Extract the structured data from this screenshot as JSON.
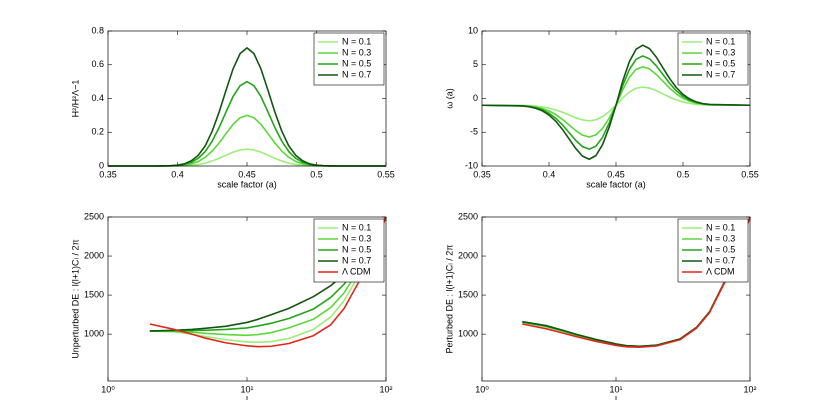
{
  "chart_data": [
    {
      "type": "line",
      "xlabel": "scale factor (a)",
      "ylabel": "H²/H²Λ−1",
      "x": [
        0.35,
        0.38,
        0.385,
        0.39,
        0.395,
        0.4,
        0.405,
        0.41,
        0.415,
        0.42,
        0.425,
        0.43,
        0.435,
        0.44,
        0.445,
        0.45,
        0.455,
        0.46,
        0.465,
        0.47,
        0.475,
        0.48,
        0.485,
        0.49,
        0.495,
        0.5,
        0.505,
        0.51,
        0.515,
        0.52,
        0.55
      ],
      "xlim": [
        0.35,
        0.55
      ],
      "xticks": [
        0.35,
        0.4,
        0.45,
        0.5,
        0.55
      ],
      "ylim": [
        0,
        0.8
      ],
      "yticks": [
        0,
        0.2,
        0.4,
        0.6,
        0.8
      ],
      "legend": "upper right",
      "series": [
        {
          "name": "N = 0.1",
          "color": "#9bee78",
          "values": [
            0,
            0,
            0,
            0,
            0,
            0.001,
            0.002,
            0.004,
            0.009,
            0.017,
            0.03,
            0.046,
            0.064,
            0.082,
            0.095,
            0.1,
            0.095,
            0.082,
            0.064,
            0.046,
            0.03,
            0.017,
            0.009,
            0.004,
            0.002,
            0.001,
            0,
            0,
            0,
            0,
            0
          ]
        },
        {
          "name": "N = 0.3",
          "color": "#5ad83a",
          "values": [
            0,
            0,
            0,
            0,
            0.001,
            0.002,
            0.006,
            0.013,
            0.027,
            0.052,
            0.089,
            0.137,
            0.193,
            0.247,
            0.286,
            0.3,
            0.286,
            0.247,
            0.193,
            0.137,
            0.089,
            0.052,
            0.027,
            0.013,
            0.006,
            0.002,
            0.001,
            0,
            0,
            0,
            0
          ]
        },
        {
          "name": "N = 0.5",
          "color": "#22a516",
          "values": [
            0,
            0,
            0,
            0,
            0.001,
            0.004,
            0.01,
            0.022,
            0.046,
            0.086,
            0.148,
            0.229,
            0.322,
            0.412,
            0.476,
            0.5,
            0.476,
            0.412,
            0.322,
            0.229,
            0.148,
            0.086,
            0.046,
            0.022,
            0.01,
            0.004,
            0.001,
            0,
            0,
            0,
            0
          ]
        },
        {
          "name": "N = 0.7",
          "color": "#125612",
          "values": [
            0,
            0,
            0,
            0.001,
            0.002,
            0.005,
            0.013,
            0.031,
            0.064,
            0.12,
            0.207,
            0.321,
            0.451,
            0.576,
            0.666,
            0.7,
            0.666,
            0.576,
            0.451,
            0.321,
            0.207,
            0.12,
            0.064,
            0.031,
            0.013,
            0.005,
            0.002,
            0.001,
            0,
            0,
            0
          ]
        }
      ]
    },
    {
      "type": "line",
      "xlabel": "scale factor (a)",
      "ylabel": "ω (a)",
      "x": [
        0.35,
        0.38,
        0.385,
        0.39,
        0.395,
        0.4,
        0.405,
        0.41,
        0.415,
        0.42,
        0.425,
        0.43,
        0.435,
        0.44,
        0.445,
        0.45,
        0.455,
        0.46,
        0.465,
        0.47,
        0.475,
        0.48,
        0.485,
        0.49,
        0.495,
        0.5,
        0.505,
        0.51,
        0.515,
        0.52,
        0.55
      ],
      "xlim": [
        0.35,
        0.55
      ],
      "xticks": [
        0.35,
        0.4,
        0.45,
        0.5,
        0.55
      ],
      "ylim": [
        -10,
        10
      ],
      "yticks": [
        -10,
        -5,
        0,
        5,
        10
      ],
      "legend": "upper right",
      "series": [
        {
          "name": "N = 0.1",
          "color": "#9bee78",
          "values": [
            -1,
            -1.03,
            -1.06,
            -1.13,
            -1.24,
            -1.42,
            -1.68,
            -2.03,
            -2.44,
            -2.85,
            -3.17,
            -3.3,
            -3.15,
            -2.67,
            -1.92,
            -1,
            0.08,
            0.97,
            1.52,
            1.7,
            1.55,
            1.17,
            0.69,
            0.2,
            -0.2,
            -0.51,
            -0.72,
            -0.85,
            -0.93,
            -0.97,
            -1
          ]
        },
        {
          "name": "N = 0.3",
          "color": "#5ad83a",
          "values": [
            -1,
            -1.06,
            -1.13,
            -1.26,
            -1.48,
            -1.85,
            -2.39,
            -3.1,
            -3.93,
            -4.77,
            -5.43,
            -5.7,
            -5.39,
            -4.42,
            -2.88,
            -1,
            1.28,
            3.15,
            4.32,
            4.7,
            4.38,
            3.58,
            2.56,
            1.54,
            0.68,
            0.03,
            -0.41,
            -0.69,
            -0.85,
            -0.93,
            -1
          ]
        },
        {
          "name": "N = 0.5",
          "color": "#22a516",
          "values": [
            -1,
            -1.09,
            -1.18,
            -1.36,
            -1.67,
            -2.18,
            -2.92,
            -3.9,
            -5.06,
            -6.22,
            -7.13,
            -7.5,
            -7.07,
            -5.73,
            -3.6,
            -1,
            1.92,
            4.31,
            5.81,
            6.3,
            5.88,
            4.86,
            3.56,
            2.26,
            1.15,
            0.32,
            -0.25,
            -0.6,
            -0.8,
            -0.91,
            -1
          ]
        },
        {
          "name": "N = 0.7",
          "color": "#125612",
          "values": [
            -1,
            -1.1,
            -1.22,
            -1.44,
            -1.82,
            -2.45,
            -3.36,
            -4.57,
            -5.99,
            -7.42,
            -8.54,
            -9,
            -8.46,
            -6.82,
            -4.2,
            -1,
            2.56,
            5.48,
            7.3,
            7.9,
            7.39,
            6.15,
            4.55,
            2.97,
            1.63,
            0.61,
            -0.08,
            -0.51,
            -0.76,
            -0.88,
            -1
          ]
        }
      ]
    },
    {
      "type": "line",
      "xlabel": "l",
      "ylabel": "Unperturbed DE : l(l+1)Cₗ / 2π",
      "xscale": "log",
      "x": [
        2,
        3,
        4,
        5,
        7,
        10,
        12,
        15,
        20,
        30,
        40,
        50,
        70,
        100
      ],
      "xlim": [
        1,
        100
      ],
      "xticks": [
        {
          "value": 1,
          "label": "10⁰"
        },
        {
          "value": 10,
          "label": "10¹"
        },
        {
          "value": 100,
          "label": "10²"
        }
      ],
      "ylim": [
        400,
        2500
      ],
      "yticks": [
        1000,
        1500,
        2000,
        2500
      ],
      "legend": "upper right",
      "series": [
        {
          "name": "N = 0.1",
          "color": "#9bee78",
          "values": [
            1040,
            1030,
            1000,
            970,
            930,
            900,
            895,
            905,
            945,
            1060,
            1220,
            1430,
            1880,
            2500
          ]
        },
        {
          "name": "N = 0.3",
          "color": "#5ad83a",
          "values": [
            1040,
            1035,
            1025,
            1010,
            995,
            985,
            995,
            1020,
            1080,
            1190,
            1340,
            1530,
            1950,
            2500
          ]
        },
        {
          "name": "N = 0.5",
          "color": "#22a516",
          "values": [
            1040,
            1045,
            1045,
            1050,
            1060,
            1080,
            1105,
            1140,
            1200,
            1320,
            1470,
            1640,
            2030,
            2500
          ]
        },
        {
          "name": "N = 0.7",
          "color": "#125612",
          "values": [
            1040,
            1050,
            1060,
            1075,
            1100,
            1150,
            1190,
            1250,
            1330,
            1480,
            1620,
            1770,
            2120,
            2500
          ]
        },
        {
          "name": "Λ CDM",
          "color": "#e3261c",
          "values": [
            1130,
            1060,
            1000,
            950,
            890,
            850,
            840,
            845,
            880,
            980,
            1120,
            1330,
            1800,
            2500
          ]
        }
      ]
    },
    {
      "type": "line",
      "xlabel": "l",
      "ylabel": "Perturbed DE : l(l+1)Cₗ / 2π",
      "xscale": "log",
      "x": [
        2,
        3,
        4,
        5,
        7,
        10,
        12,
        15,
        20,
        30,
        40,
        50,
        70,
        100
      ],
      "xlim": [
        1,
        100
      ],
      "xticks": [
        {
          "value": 1,
          "label": "10⁰"
        },
        {
          "value": 10,
          "label": "10¹"
        },
        {
          "value": 100,
          "label": "10²"
        }
      ],
      "ylim": [
        400,
        2500
      ],
      "yticks": [
        1000,
        1500,
        2000,
        2500
      ],
      "legend": "upper right",
      "series": [
        {
          "name": "N = 0.1",
          "color": "#9bee78",
          "values": [
            1150,
            1095,
            1035,
            985,
            925,
            865,
            845,
            840,
            855,
            935,
            1085,
            1285,
            1785,
            2500
          ]
        },
        {
          "name": "N = 0.3",
          "color": "#5ad83a",
          "values": [
            1153,
            1100,
            1040,
            990,
            928,
            868,
            848,
            842,
            856,
            936,
            1086,
            1286,
            1787,
            2500
          ]
        },
        {
          "name": "N = 0.5",
          "color": "#22a516",
          "values": [
            1157,
            1105,
            1045,
            995,
            932,
            872,
            850,
            843,
            857,
            937,
            1087,
            1287,
            1788,
            2500
          ]
        },
        {
          "name": "N = 0.7",
          "color": "#125612",
          "values": [
            1160,
            1110,
            1050,
            1000,
            935,
            875,
            852,
            845,
            858,
            938,
            1088,
            1288,
            1790,
            2500
          ]
        },
        {
          "name": "Λ CDM",
          "color": "#e3261c",
          "values": [
            1130,
            1070,
            1015,
            970,
            910,
            855,
            838,
            832,
            848,
            928,
            1078,
            1278,
            1778,
            2500
          ]
        }
      ]
    }
  ]
}
